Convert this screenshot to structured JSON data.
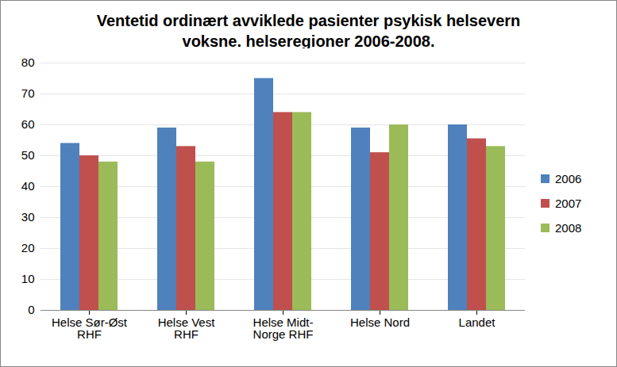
{
  "chart_data": {
    "type": "bar",
    "title": "Ventetid ordinært avviklede pasienter psykisk helsevern\nvoksne. helseregioner 2006-2008.",
    "categories": [
      "Helse Sør-Øst RHF",
      "Helse Vest RHF",
      "Helse Midt-Norge RHF",
      "Helse Nord",
      "Landet"
    ],
    "series": [
      {
        "name": "2006",
        "color": "#4F81BD",
        "values": [
          54,
          59,
          75,
          59,
          60
        ]
      },
      {
        "name": "2007",
        "color": "#C0504D",
        "values": [
          50,
          53,
          64,
          51,
          55.5
        ]
      },
      {
        "name": "2008",
        "color": "#9BBB59",
        "values": [
          48,
          48,
          64,
          60,
          53
        ]
      }
    ],
    "ylim": [
      0,
      80
    ],
    "yticks": [
      0,
      10,
      20,
      30,
      40,
      50,
      60,
      70,
      80
    ],
    "grid": true,
    "legend": "right"
  }
}
